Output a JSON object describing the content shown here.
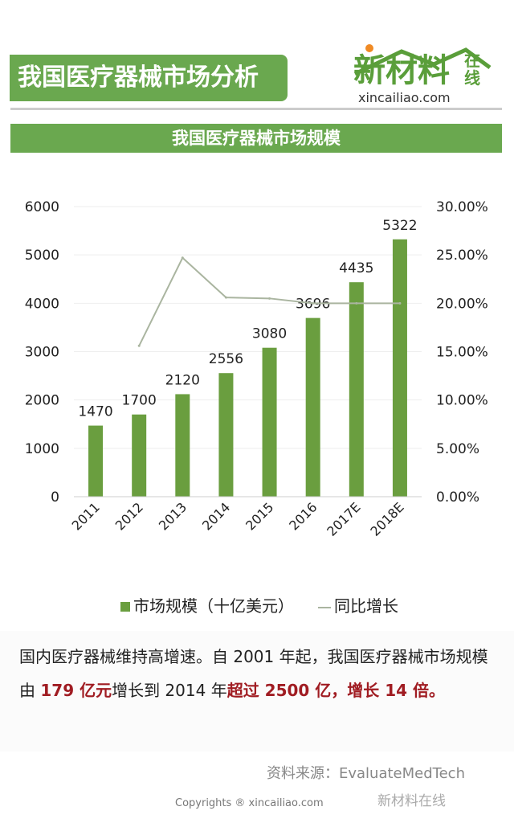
{
  "header": {
    "title": "我国医疗器械市场分析",
    "logo_cn": "新材料",
    "logo_cn2": "在线",
    "logo_url": "xincailiao.com"
  },
  "chart_data": {
    "type": "bar",
    "title": "我国医疗器械市场规模",
    "categories": [
      "2011",
      "2012",
      "2013",
      "2014",
      "2015",
      "2016",
      "2017E",
      "2018E"
    ],
    "series": [
      {
        "name": "市场规模（十亿美元）",
        "type": "bar",
        "axis": "left",
        "values": [
          1470,
          1700,
          2120,
          2556,
          3080,
          3696,
          4435,
          5322
        ],
        "color": "#6a9e3f"
      },
      {
        "name": "同比增长",
        "type": "line",
        "axis": "right",
        "values": [
          null,
          15.6,
          24.7,
          20.6,
          20.5,
          20.0,
          20.0,
          20.0
        ],
        "color": "#aab5a0"
      }
    ],
    "ylim": [
      0,
      6000
    ],
    "yticks": [
      "0",
      "1000",
      "2000",
      "3000",
      "4000",
      "5000",
      "6000"
    ],
    "y2lim": [
      0,
      30
    ],
    "y2ticks": [
      "0.00%",
      "5.00%",
      "10.00%",
      "15.00%",
      "20.00%",
      "25.00%",
      "30.00%"
    ],
    "legend": "bottom",
    "grid": true
  },
  "watermark": "xincailiao.com",
  "text": {
    "p1": "国内医疗器械维持高增速。自 2001 年起，我国医疗器械市场规模由 ",
    "r1": "179 亿元",
    "p2": "增长到 2014 年",
    "r2": "超过 2500 亿，增长 14 倍。"
  },
  "footer": {
    "source": "资料来源：EvaluateMedTech",
    "copyright": "Copyrights ® xincailiao.com",
    "wechat": "新材料在线"
  }
}
